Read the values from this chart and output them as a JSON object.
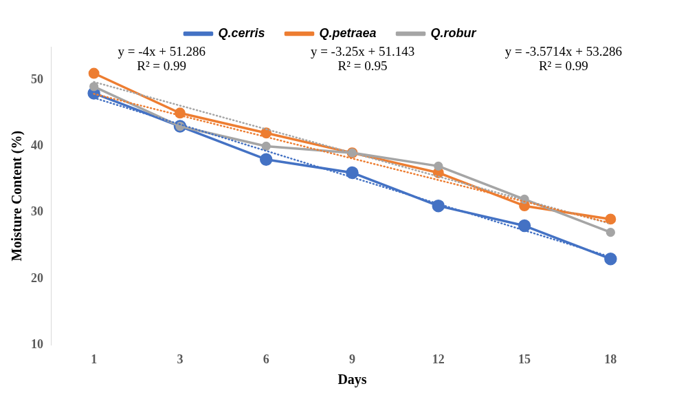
{
  "chart_data": {
    "type": "line",
    "xlabel": "Days",
    "ylabel": "Moisture Content (%)",
    "categories": [
      "1",
      "3",
      "6",
      "9",
      "12",
      "15",
      "18"
    ],
    "series": [
      {
        "name": "Q.cerris",
        "color": "#4472c4",
        "values": [
          48,
          43,
          38,
          36,
          31,
          28,
          23
        ]
      },
      {
        "name": "Q.petraea",
        "color": "#ed7d31",
        "values": [
          51,
          45,
          42,
          39,
          36,
          31,
          29
        ]
      },
      {
        "name": "Q.robur",
        "color": "#a5a5a5",
        "values": [
          49,
          43,
          40,
          39,
          37,
          32,
          27
        ]
      },
      {
        "type": "line",
        "color": "#4472c4",
        "x": [
          "1",
          "18"
        ],
        "values": [
          47.3,
          23.3
        ],
        "marker": "none",
        "line_style": "dotted"
      },
      {
        "type": "line",
        "color": "#ed7d31",
        "x": [
          "1",
          "18"
        ],
        "values": [
          47.9,
          28.4
        ],
        "marker": "none",
        "line_style": "dotted"
      },
      {
        "type": "line",
        "color": "#a5a5a5",
        "x": [
          "1",
          "18"
        ],
        "values": [
          49.7,
          28.3
        ],
        "marker": "none",
        "line_style": "dotted"
      }
    ],
    "annotations": [
      "y = -4x + 51.286",
      "R² = 0.99",
      "y = -3.25x + 51.143",
      "R² = 0.95",
      "y = -3.5714x + 53.286",
      "R² = 0.99"
    ],
    "ylim": [
      10,
      55
    ],
    "yticks": [
      10,
      20,
      30,
      40,
      50
    ],
    "grid": false,
    "legend": "top",
    "marker": "circle",
    "line_style": "solid"
  }
}
